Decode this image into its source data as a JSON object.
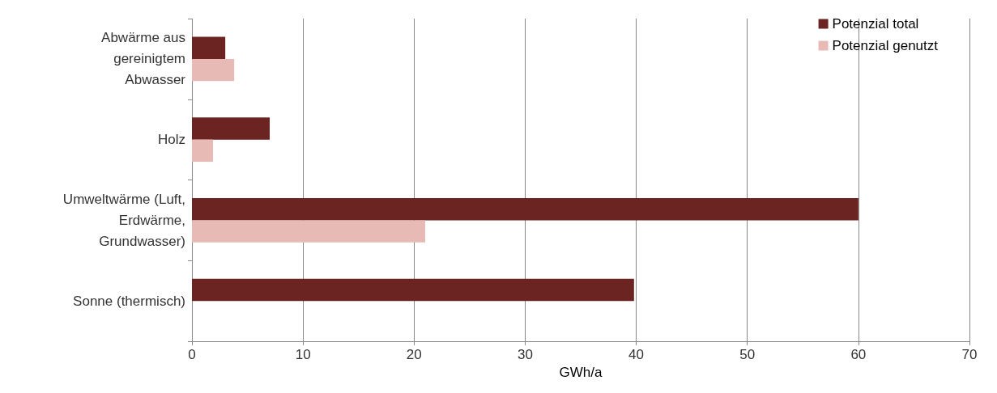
{
  "chart_data": {
    "type": "bar",
    "orientation": "horizontal",
    "categories": [
      "Abwärme aus\ngereinigtem\nAbwasser",
      "Holz",
      "Umweltwärme (Luft,\nErdwärme,\nGrundwasser)",
      "Sonne (thermisch)"
    ],
    "series": [
      {
        "name": "Potenzial total",
        "color": "#6b2422",
        "values": [
          3,
          7,
          60,
          39.8
        ]
      },
      {
        "name": "Potenzial genutzt",
        "color": "#e8bab6",
        "values": [
          3.8,
          1.9,
          21,
          null
        ]
      }
    ],
    "xlabel": "GWh/a",
    "xlim": [
      0,
      70
    ],
    "xticks": [
      0,
      10,
      20,
      30,
      40,
      50,
      60,
      70
    ],
    "grid": "x",
    "legend": "top right"
  }
}
